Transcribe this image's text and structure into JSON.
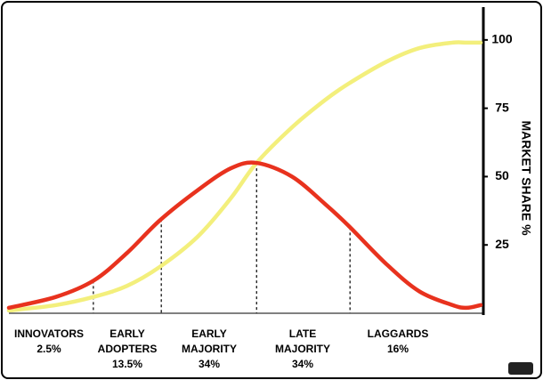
{
  "chart_data": {
    "type": "line",
    "y_axis_label": "MARKET SHARE %",
    "x": [
      0,
      10,
      18,
      25,
      32,
      40,
      47,
      52.5,
      60,
      67,
      72,
      80,
      87,
      94,
      97,
      100
    ],
    "xlim": [
      0,
      100
    ],
    "ylim": [
      0,
      112
    ],
    "yticks": [
      25,
      50,
      75,
      100
    ],
    "series": [
      {
        "color": "#e8321e",
        "values": [
          2,
          6,
          12,
          22,
          34,
          45,
          53,
          55,
          50,
          40,
          32,
          18,
          8,
          3,
          2,
          3
        ]
      },
      {
        "color": "#f3ef7c",
        "values": [
          1,
          3,
          6,
          10,
          17,
          28,
          42,
          55,
          68,
          78,
          84,
          92,
          97,
          99,
          99,
          99
        ]
      }
    ],
    "segment_boundaries": [
      17.9,
      32.3,
      52.5,
      72.3
    ],
    "segments": {
      "names": [
        "INNOVATORS",
        "EARLY\nADOPTERS",
        "EARLY\nMAJORITY",
        "LATE\nMAJORITY",
        "LAGGARDS"
      ],
      "values": [
        2.5,
        13.5,
        34,
        34,
        16
      ],
      "value_labels": [
        "2.5%",
        "13.5%",
        "34%",
        "34%",
        "16%"
      ]
    }
  }
}
